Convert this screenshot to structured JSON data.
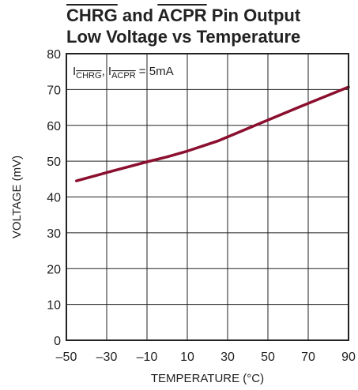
{
  "chart_data": {
    "type": "line",
    "title_line1": {
      "parts": [
        {
          "text": "CHRG",
          "overline": true
        },
        {
          "text": " and ",
          "overline": false
        },
        {
          "text": "ACPR",
          "overline": true
        },
        {
          "text": " Pin Output",
          "overline": false
        }
      ]
    },
    "title_line2": "Low Voltage vs Temperature",
    "xlabel": "TEMPERATURE (°C)",
    "ylabel": "VOLTAGE (mV)",
    "xlim": [
      -50,
      90
    ],
    "ylim": [
      0,
      80
    ],
    "x_ticks": [
      -50,
      -30,
      -10,
      10,
      30,
      50,
      70,
      90
    ],
    "x_tick_labels": [
      "–50",
      "–30",
      "–10",
      "10",
      "30",
      "50",
      "70",
      "90"
    ],
    "y_ticks": [
      0,
      10,
      20,
      30,
      40,
      50,
      60,
      70,
      80
    ],
    "y_tick_labels": [
      "0",
      "10",
      "20",
      "30",
      "40",
      "50",
      "60",
      "70",
      "80"
    ],
    "grid": true,
    "annotation": {
      "parts": [
        {
          "text": "I",
          "style": "normal"
        },
        {
          "text": "CHRG",
          "style": "sub-overline"
        },
        {
          "text": ", I",
          "style": "normal"
        },
        {
          "text": "ACPR",
          "style": "sub-overline"
        },
        {
          "text": " = 5mA",
          "style": "normal"
        }
      ]
    },
    "series": [
      {
        "color": "#8b0f2e",
        "x": [
          -45,
          -30,
          -10,
          0,
          10,
          25,
          45,
          65,
          90
        ],
        "y": [
          44.5,
          46.8,
          49.8,
          51.2,
          52.8,
          55.6,
          60.3,
          65.0,
          70.7
        ]
      }
    ]
  }
}
